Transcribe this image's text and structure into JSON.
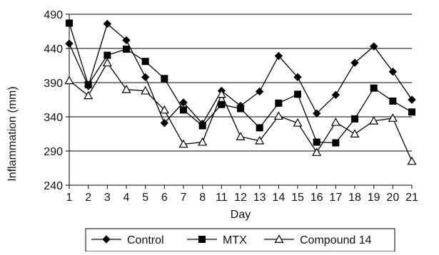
{
  "chart_data": {
    "type": "line",
    "title": "",
    "xlabel": "Day",
    "ylabel": "Inflammation (mm)",
    "categories": [
      "1",
      "2",
      "3",
      "4",
      "5",
      "6",
      "7",
      "8",
      "11",
      "12",
      "13",
      "14",
      "15",
      "16",
      "17",
      "18",
      "19",
      "20",
      "21"
    ],
    "ylim": [
      240,
      490
    ],
    "yticks": [
      240,
      290,
      340,
      390,
      440,
      490
    ],
    "grid": "horizontal",
    "legend_position": "bottom",
    "series": [
      {
        "name": "Control",
        "marker": "diamond",
        "values": [
          447,
          385,
          476,
          452,
          398,
          331,
          361,
          330,
          378,
          356,
          377,
          429,
          398,
          345,
          372,
          419,
          443,
          406,
          365
        ]
      },
      {
        "name": "MTX",
        "marker": "square",
        "values": [
          477,
          387,
          430,
          439,
          421,
          396,
          350,
          327,
          358,
          352,
          324,
          360,
          373,
          303,
          302,
          337,
          382,
          363,
          347
        ]
      },
      {
        "name": "Compound 14",
        "marker": "triangle",
        "values": [
          393,
          371,
          419,
          380,
          378,
          350,
          300,
          303,
          373,
          311,
          305,
          341,
          331,
          288,
          332,
          315,
          334,
          338,
          275
        ]
      }
    ]
  }
}
